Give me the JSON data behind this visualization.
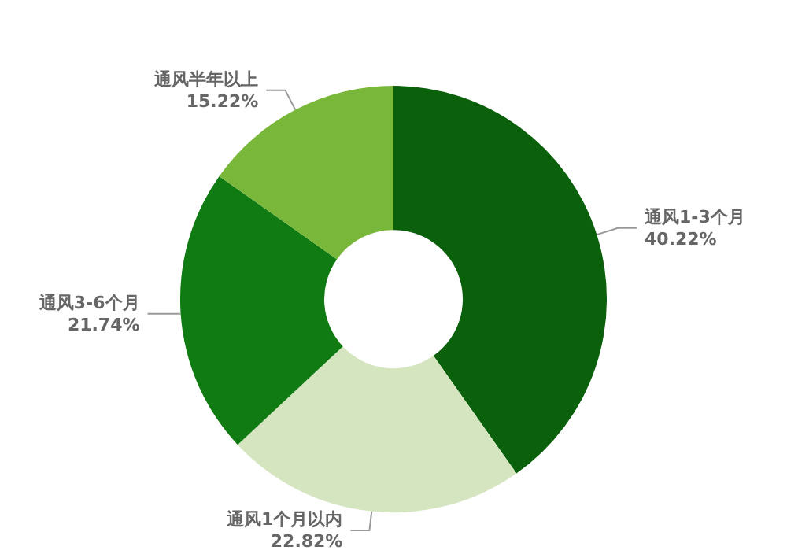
{
  "chart_data": {
    "type": "donut",
    "categories": [
      "通风1-3个月",
      "通风1个月以内",
      "通风3-6个月",
      "通风半年以上"
    ],
    "values": [
      40.22,
      22.82,
      21.74,
      15.22
    ],
    "value_labels": [
      "40.22%",
      "22.82%",
      "21.74%",
      "15.22%"
    ],
    "colors": [
      "#0b600b",
      "#d5e5bf",
      "#0f7b12",
      "#79b73a"
    ],
    "legend": false
  }
}
